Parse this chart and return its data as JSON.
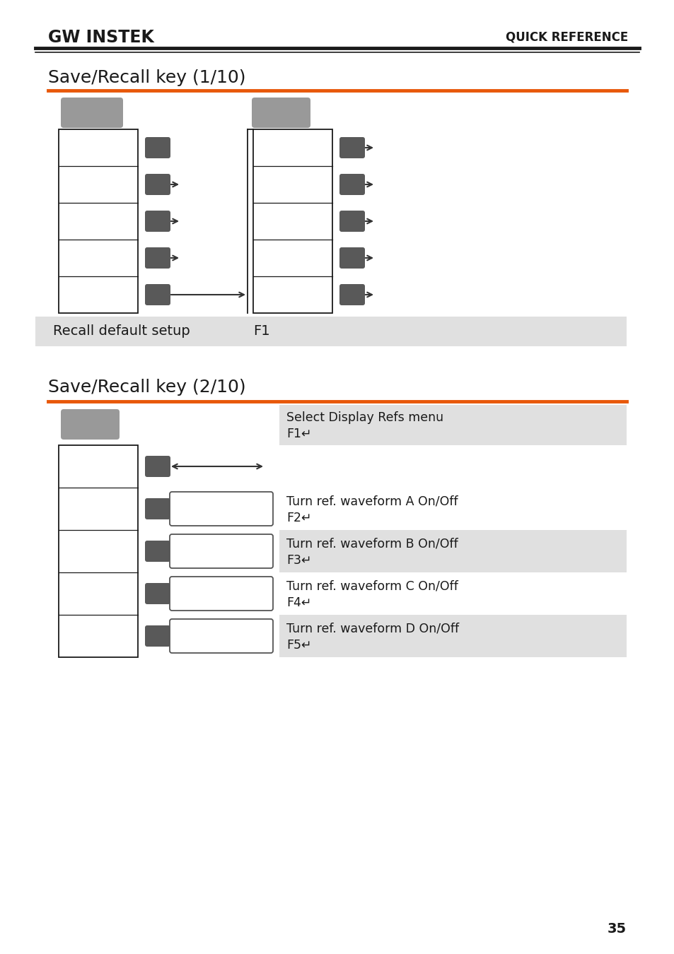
{
  "bg_color": "#ffffff",
  "orange_line_color": "#e8580a",
  "gray_button_color": "#999999",
  "dark_button_color": "#595959",
  "light_gray_bg": "#e0e0e0",
  "title1": "Save/Recall key (1/10)",
  "title2": "Save/Recall key (2/10)",
  "header_left": "GW INSTEK",
  "header_right": "QUICK REFERENCE",
  "recall_label": "Recall default setup",
  "recall_key": "F1",
  "s2_pairs": [
    [
      "Select Display Refs menu",
      "F1↵"
    ],
    [
      "Turn ref. waveform A On/Off",
      "F2↵"
    ],
    [
      "Turn ref. waveform B On/Off",
      "F3↵"
    ],
    [
      "Turn ref. waveform C On/Off",
      "F4↵"
    ],
    [
      "Turn ref. waveform D On/Off",
      "F5↵"
    ]
  ],
  "page_number": "35"
}
